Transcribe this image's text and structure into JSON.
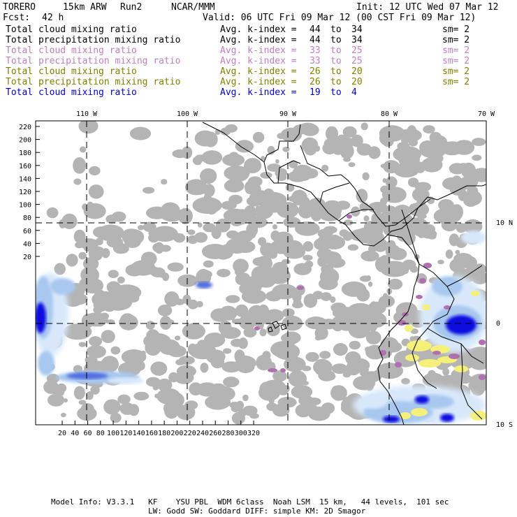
{
  "header": {
    "model": "TORERO",
    "resolution": "15km ARW",
    "run": "Run2",
    "org": "NCAR/MMM",
    "init": "Init: 12 UTC Wed 07 Mar 12",
    "fcst_label": "Fcst:",
    "fcst_value": "42 h",
    "valid": "Valid: 06 UTC Fri 09 Mar 12 (00 CST Fri 09 Mar 12)"
  },
  "legend": [
    {
      "field": "Total cloud mixing ratio",
      "kindex": "Avg. k-index =",
      "k_from": "44",
      "to": "to",
      "k_to": "34",
      "sm": "sm= 2",
      "color": "#000000"
    },
    {
      "field": "Total precipitation mixing ratio",
      "kindex": "Avg. k-index =",
      "k_from": "44",
      "to": "to",
      "k_to": "34",
      "sm": "sm= 2",
      "color": "#000000"
    },
    {
      "field": "Total cloud mixing ratio",
      "kindex": "Avg. k-index =",
      "k_from": "33",
      "to": "to",
      "k_to": "25",
      "sm": "sm= 2",
      "color": "#c080c0"
    },
    {
      "field": "Total precipitation mixing ratio",
      "kindex": "Avg. k-index =",
      "k_from": "33",
      "to": "to",
      "k_to": "25",
      "sm": "sm= 2",
      "color": "#c080c0"
    },
    {
      "field": "Total cloud mixing ratio",
      "kindex": "Avg. k-index =",
      "k_from": "26",
      "to": "to",
      "k_to": "20",
      "sm": "sm= 2",
      "color": "#808000"
    },
    {
      "field": "Total precipitation mixing ratio",
      "kindex": "Avg. k-index =",
      "k_from": "26",
      "to": "to",
      "k_to": "20",
      "sm": "sm= 2",
      "color": "#808000"
    },
    {
      "field": "Total cloud mixing ratio",
      "kindex": "Avg. k-index =",
      "k_from": "19",
      "to": "to",
      "k_to": "4",
      "sm": "",
      "color": "#0000cc"
    }
  ],
  "map": {
    "lon_labels": [
      "110 W",
      "100 W",
      "90 W",
      "80 W",
      "70 W"
    ],
    "lat_labels": [
      "10 N",
      "0",
      "10 S"
    ],
    "y_ticks": [
      "220",
      "200",
      "180",
      "160",
      "140",
      "120",
      "100",
      "80",
      "60",
      "40",
      "20"
    ],
    "x_ticks": [
      "20",
      "40",
      "60",
      "80",
      "100",
      "120",
      "140",
      "160",
      "180",
      "200",
      "220",
      "240",
      "260",
      "280",
      "300",
      "320"
    ],
    "colors": {
      "cloud_gray": "#b4b4b4",
      "magenta": "#b070b0",
      "yellow": "#f5f07a",
      "blue_dark": "#1010e0",
      "blue_light": "#a8c8f0",
      "blue_pale": "#d8e8fa"
    }
  },
  "footer": {
    "line1": "Model Info: V3.3.1   KF    YSU PBL  WDM 6class  Noah LSM  15 km,   44 levels,  101 sec",
    "line2": "LW: Godd SW: Goddard DIFF: simple KM: 2D Smagor"
  }
}
